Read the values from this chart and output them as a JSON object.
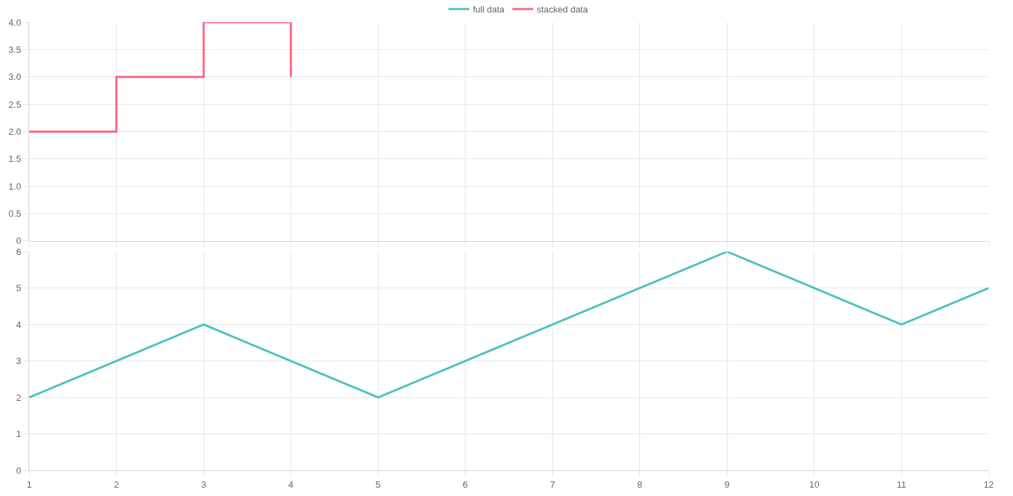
{
  "chart_data": [
    {
      "type": "step",
      "x": [
        1,
        2,
        3,
        4
      ],
      "series": [
        {
          "name": "stacked data",
          "color": "#ff6384",
          "values": [
            2,
            3,
            4,
            3
          ]
        }
      ],
      "xlim": [
        1,
        12
      ],
      "xticks": [
        1,
        2,
        3,
        4,
        5,
        6,
        7,
        8,
        9,
        10,
        11,
        12
      ],
      "ylim": [
        0,
        4
      ],
      "yticks": [
        0,
        0.5,
        {
          "value": 1,
          "label": "1.0"
        },
        1.5,
        {
          "value": 2,
          "label": "2.0"
        },
        2.5,
        {
          "value": 3,
          "label": "3.0"
        },
        3.5,
        {
          "value": 4,
          "label": "4.0"
        }
      ],
      "tick_labels": "y",
      "grid": true,
      "legend": "top",
      "marker": "none",
      "line_style": "solid"
    },
    {
      "type": "line",
      "x": [
        1,
        2,
        3,
        4,
        5,
        6,
        7,
        8,
        9,
        10,
        11,
        12
      ],
      "series": [
        {
          "name": "full data",
          "color": "#4bc0c0",
          "values": [
            2,
            3,
            4,
            3,
            2,
            3,
            4,
            5,
            6,
            5,
            4,
            5
          ]
        }
      ],
      "xlim": [
        1,
        12
      ],
      "xticks": [
        1,
        2,
        3,
        4,
        5,
        6,
        7,
        8,
        9,
        10,
        11,
        12
      ],
      "ylim": [
        0,
        6
      ],
      "yticks": [
        0,
        1,
        2,
        3,
        4,
        5,
        6
      ],
      "grid": true,
      "legend": "top",
      "marker": "none",
      "line_style": "solid"
    }
  ]
}
